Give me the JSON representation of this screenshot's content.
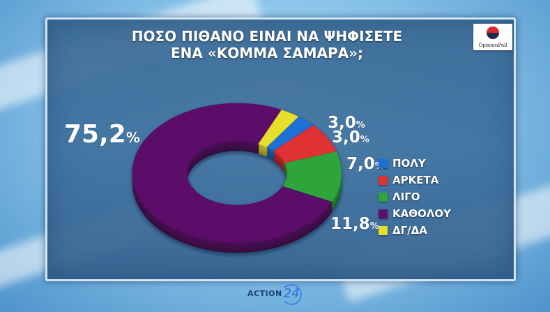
{
  "header": {
    "title_line1": "ΠΟΣΟ ΠΙΘΑΝΟ ΕΙΝΑΙ ΝΑ ΨΗΦΙΣΕΤΕ",
    "title_line2": "ΕΝΑ «ΚΟΜΜΑ ΣΑΜΑΡΑ»;",
    "logo_text": "OpinionPoll"
  },
  "footer": {
    "brand_text": "ACTION",
    "brand_number": "24"
  },
  "chart_data": {
    "type": "pie",
    "title": "ΠΟΣΟ ΠΙΘΑΝΟ ΕΙΝΑΙ ΝΑ ΨΗΦΙΣΕΤΕ ΕΝΑ «ΚΟΜΜΑ ΣΑΜΑΡΑ»;",
    "donut": true,
    "categories": [
      "ΠΟΛΥ",
      "ΑΡΚΕΤΑ",
      "ΛΙΓΟ",
      "ΚΑΘΟΛΟΥ",
      "ΔΓ/ΔΑ"
    ],
    "values": [
      3.0,
      7.0,
      11.8,
      75.2,
      3.0
    ],
    "value_labels": [
      "3,0",
      "7,0",
      "11,8",
      "75,2",
      "3,0"
    ],
    "unit": "%",
    "colors": [
      "#1f6fd6",
      "#e03232",
      "#2fa53b",
      "#5c0f6b",
      "#e6e02a"
    ],
    "legend_position": "right"
  }
}
